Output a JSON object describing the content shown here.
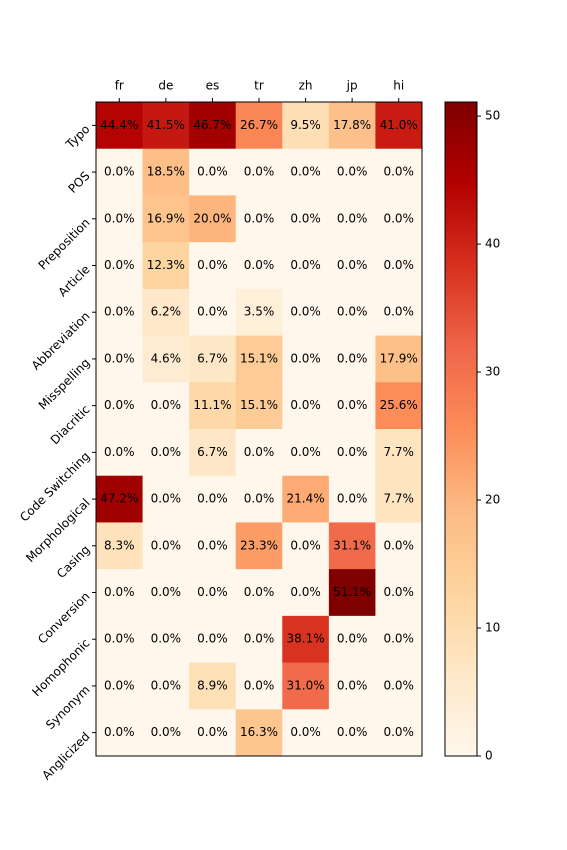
{
  "chart_data": {
    "type": "heatmap",
    "x_categories": [
      "fr",
      "de",
      "es",
      "tr",
      "zh",
      "jp",
      "hi"
    ],
    "y_categories": [
      "Typo",
      "POS",
      "Preposition",
      "Article",
      "Abbreviation",
      "Misspelling",
      "Diacritic",
      "Code Switching",
      "Morphological",
      "Casing",
      "Conversion",
      "Homophonic",
      "Synonym",
      "Anglicized"
    ],
    "values": [
      [
        44.4,
        41.5,
        46.7,
        26.7,
        9.5,
        17.8,
        41.0
      ],
      [
        0.0,
        18.5,
        0.0,
        0.0,
        0.0,
        0.0,
        0.0
      ],
      [
        0.0,
        16.9,
        20.0,
        0.0,
        0.0,
        0.0,
        0.0
      ],
      [
        0.0,
        12.3,
        0.0,
        0.0,
        0.0,
        0.0,
        0.0
      ],
      [
        0.0,
        6.2,
        0.0,
        3.5,
        0.0,
        0.0,
        0.0
      ],
      [
        0.0,
        4.6,
        6.7,
        15.1,
        0.0,
        0.0,
        17.9
      ],
      [
        0.0,
        0.0,
        11.1,
        15.1,
        0.0,
        0.0,
        25.6
      ],
      [
        0.0,
        0.0,
        6.7,
        0.0,
        0.0,
        0.0,
        7.7
      ],
      [
        47.2,
        0.0,
        0.0,
        0.0,
        21.4,
        0.0,
        7.7
      ],
      [
        8.3,
        0.0,
        0.0,
        23.3,
        0.0,
        31.1,
        0.0
      ],
      [
        0.0,
        0.0,
        0.0,
        0.0,
        0.0,
        51.1,
        0.0
      ],
      [
        0.0,
        0.0,
        0.0,
        0.0,
        38.1,
        0.0,
        0.0
      ],
      [
        0.0,
        0.0,
        8.9,
        0.0,
        31.0,
        0.0,
        0.0
      ],
      [
        0.0,
        0.0,
        0.0,
        16.3,
        0.0,
        0.0,
        0.0
      ]
    ],
    "value_labels": [
      [
        "44.4%",
        "41.5%",
        "46.7%",
        "26.7%",
        "9.5%",
        "17.8%",
        "41.0%"
      ],
      [
        "0.0%",
        "18.5%",
        "0.0%",
        "0.0%",
        "0.0%",
        "0.0%",
        "0.0%"
      ],
      [
        "0.0%",
        "16.9%",
        "20.0%",
        "0.0%",
        "0.0%",
        "0.0%",
        "0.0%"
      ],
      [
        "0.0%",
        "12.3%",
        "0.0%",
        "0.0%",
        "0.0%",
        "0.0%",
        "0.0%"
      ],
      [
        "0.0%",
        "6.2%",
        "0.0%",
        "3.5%",
        "0.0%",
        "0.0%",
        "0.0%"
      ],
      [
        "0.0%",
        "4.6%",
        "6.7%",
        "15.1%",
        "0.0%",
        "0.0%",
        "17.9%"
      ],
      [
        "0.0%",
        "0.0%",
        "11.1%",
        "15.1%",
        "0.0%",
        "0.0%",
        "25.6%"
      ],
      [
        "0.0%",
        "0.0%",
        "6.7%",
        "0.0%",
        "0.0%",
        "0.0%",
        "7.7%"
      ],
      [
        "47.2%",
        "0.0%",
        "0.0%",
        "0.0%",
        "21.4%",
        "0.0%",
        "7.7%"
      ],
      [
        "8.3%",
        "0.0%",
        "0.0%",
        "23.3%",
        "0.0%",
        "31.1%",
        "0.0%"
      ],
      [
        "0.0%",
        "0.0%",
        "0.0%",
        "0.0%",
        "0.0%",
        "51.1%",
        "0.0%"
      ],
      [
        "0.0%",
        "0.0%",
        "0.0%",
        "0.0%",
        "38.1%",
        "0.0%",
        "0.0%"
      ],
      [
        "0.0%",
        "0.0%",
        "8.9%",
        "0.0%",
        "31.0%",
        "0.0%",
        "0.0%"
      ],
      [
        "0.0%",
        "0.0%",
        "0.0%",
        "16.3%",
        "0.0%",
        "0.0%",
        "0.0%"
      ]
    ],
    "colormap": "OrRd",
    "clim": [
      0,
      51.1
    ],
    "colorbar_ticks": [
      0,
      10,
      20,
      30,
      40,
      50
    ]
  }
}
